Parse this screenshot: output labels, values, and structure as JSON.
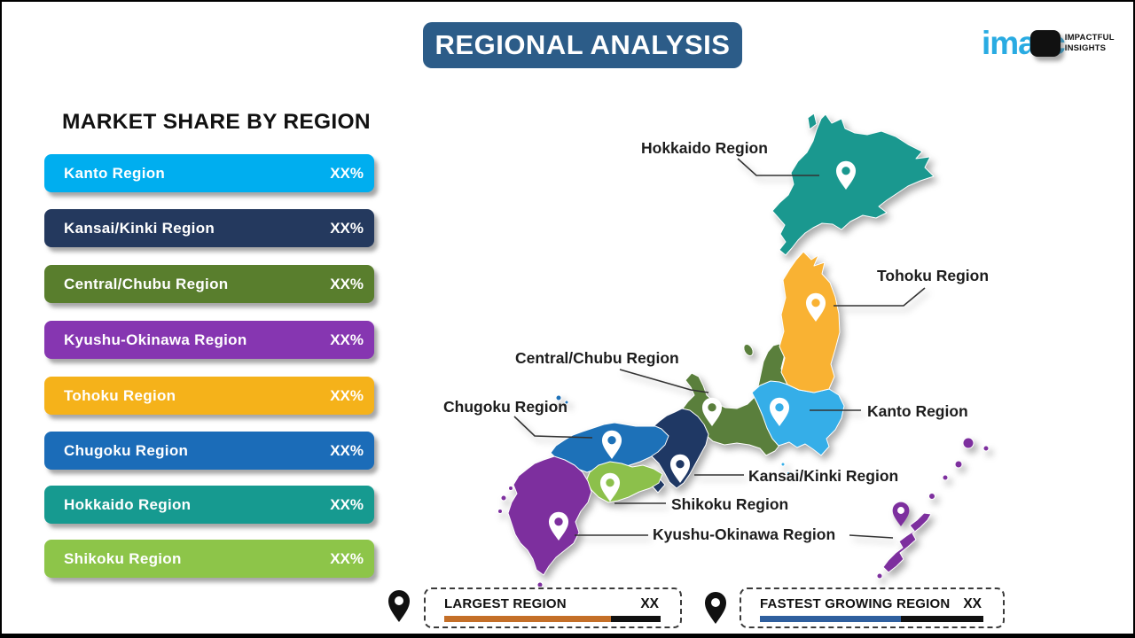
{
  "header": {
    "title": "REGIONAL ANALYSIS",
    "bg_color": "#2c5c88"
  },
  "logo": {
    "brand": "imarc",
    "brand_color": "#29abe2",
    "tagline_line1": "IMPACTFUL",
    "tagline_line2": "INSIGHTS"
  },
  "market_share": {
    "title": "MARKET SHARE BY REGION",
    "items": [
      {
        "label": "Kanto Region",
        "value": "XX%",
        "color": "#00aeef"
      },
      {
        "label": "Kansai/Kinki Region",
        "value": "XX%",
        "color": "#24395e"
      },
      {
        "label": "Central/Chubu Region",
        "value": "XX%",
        "color": "#597e2d"
      },
      {
        "label": "Kyushu-Okinawa Region",
        "value": "XX%",
        "color": "#8636b1"
      },
      {
        "label": "Tohoku Region",
        "value": "XX%",
        "color": "#f5b21a"
      },
      {
        "label": "Chugoku Region",
        "value": "XX%",
        "color": "#1b6cb8"
      },
      {
        "label": "Hokkaido Region",
        "value": "XX%",
        "color": "#169a90"
      },
      {
        "label": "Shikoku Region",
        "value": "XX%",
        "color": "#8dc549"
      }
    ]
  },
  "map": {
    "pin_color": "#ffffff",
    "regions": [
      {
        "id": "hokkaido",
        "label": "Hokkaido Region",
        "color": "#1a988f"
      },
      {
        "id": "tohoku",
        "label": "Tohoku Region",
        "color": "#f9b233"
      },
      {
        "id": "kanto",
        "label": "Kanto Region",
        "color": "#35aee8"
      },
      {
        "id": "central_chubu",
        "label": "Central/Chubu Region",
        "color": "#5a7f3c"
      },
      {
        "id": "kansai_kinki",
        "label": "Kansai/Kinki Region",
        "color": "#1f3864"
      },
      {
        "id": "chugoku",
        "label": "Chugoku Region",
        "color": "#1d71b8"
      },
      {
        "id": "shikoku",
        "label": "Shikoku Region",
        "color": "#8cc04b"
      },
      {
        "id": "kyushu_okinawa",
        "label": "Kyushu-Okinawa Region",
        "color": "#7d2f9e"
      }
    ]
  },
  "legend": {
    "pin_color": "#111111",
    "largest": {
      "label": "LARGEST REGION",
      "value": "XX",
      "bar_color": "#c46f28",
      "bar_fill_pct": 77
    },
    "fastest": {
      "label": "FASTEST GROWING REGION",
      "value": "XX",
      "bar_color": "#2f5f9e",
      "bar_fill_pct": 63
    }
  }
}
